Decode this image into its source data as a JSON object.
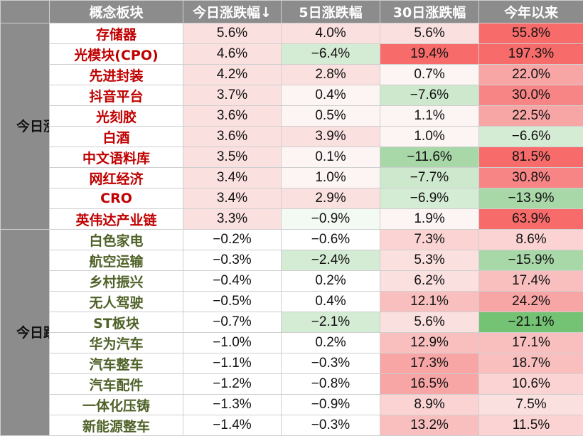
{
  "header": [
    "概念板块",
    "今日涨跌幅↓",
    "5日涨跌幅",
    "30日涨跌幅",
    "今年以来"
  ],
  "groups": [
    {
      "label": "今日涨幅前十",
      "kind": "top",
      "rows": [
        {
          "name": "存储器",
          "values": [
            "5.6%",
            "4.0%",
            "5.6%",
            "55.8%"
          ],
          "colors": [
            "#fbe0e0",
            "#fbe0e0",
            "#fbe0e0",
            "#f86b6b"
          ]
        },
        {
          "name": "光模块(CPO)",
          "values": [
            "4.6%",
            "−6.4%",
            "19.4%",
            "197.3%"
          ],
          "colors": [
            "#fbe0e0",
            "#d4ebd4",
            "#f86b6b",
            "#f86b6b"
          ]
        },
        {
          "name": "先进封装",
          "values": [
            "4.2%",
            "2.8%",
            "0.7%",
            "22.0%"
          ],
          "colors": [
            "#fbe0e0",
            "#fbe0e0",
            "#fdf4f4",
            "#f8a5a5"
          ]
        },
        {
          "name": "抖音平台",
          "values": [
            "3.7%",
            "0.4%",
            "−7.6%",
            "30.0%"
          ],
          "colors": [
            "#fbe0e0",
            "#fdf4f4",
            "#cde8cd",
            "#f88585"
          ]
        },
        {
          "name": "光刻胶",
          "values": [
            "3.6%",
            "0.5%",
            "1.1%",
            "22.5%"
          ],
          "colors": [
            "#fbe0e0",
            "#fdf4f4",
            "#fdf4f4",
            "#f8a5a5"
          ]
        },
        {
          "name": "白酒",
          "values": [
            "3.6%",
            "3.9%",
            "1.0%",
            "−6.6%"
          ],
          "colors": [
            "#fbe0e0",
            "#fbe0e0",
            "#fdf4f4",
            "#d4ebd4"
          ]
        },
        {
          "name": "中文语料库",
          "values": [
            "3.5%",
            "0.1%",
            "−11.6%",
            "81.5%"
          ],
          "colors": [
            "#fbe0e0",
            "#fdf4f4",
            "#a8d7a8",
            "#f86b6b"
          ]
        },
        {
          "name": "网红经济",
          "values": [
            "3.4%",
            "1.0%",
            "−7.7%",
            "30.8%"
          ],
          "colors": [
            "#fbe0e0",
            "#fdf4f4",
            "#cde8cd",
            "#f88585"
          ]
        },
        {
          "name": "CRO",
          "values": [
            "3.4%",
            "2.9%",
            "−6.9%",
            "−13.9%"
          ],
          "colors": [
            "#fbe0e0",
            "#fbe0e0",
            "#d4ebd4",
            "#a8d7a8"
          ]
        },
        {
          "name": "英伟达产业链",
          "values": [
            "3.3%",
            "−0.9%",
            "1.9%",
            "63.9%"
          ],
          "colors": [
            "#fbe0e0",
            "#f3faf3",
            "#fdf4f4",
            "#f86b6b"
          ]
        }
      ]
    },
    {
      "label": "今日跌幅前十",
      "kind": "bottom",
      "rows": [
        {
          "name": "白色家电",
          "values": [
            "−0.2%",
            "−0.6%",
            "7.3%",
            "8.6%"
          ],
          "colors": [
            "#ffffff",
            "#ffffff",
            "#fbd3d3",
            "#fbd3d3"
          ]
        },
        {
          "name": "航空运输",
          "values": [
            "−0.3%",
            "−2.4%",
            "5.3%",
            "−15.9%"
          ],
          "colors": [
            "#ffffff",
            "#d4ebd4",
            "#fbe0e0",
            "#a8d7a8"
          ]
        },
        {
          "name": "乡村振兴",
          "values": [
            "−0.4%",
            "0.2%",
            "6.2%",
            "17.4%"
          ],
          "colors": [
            "#ffffff",
            "#ffffff",
            "#fbe0e0",
            "#f9bfbf"
          ]
        },
        {
          "name": "无人驾驶",
          "values": [
            "−0.5%",
            "0.4%",
            "12.1%",
            "24.2%"
          ],
          "colors": [
            "#ffffff",
            "#ffffff",
            "#f9bfbf",
            "#f8a5a5"
          ]
        },
        {
          "name": "ST板块",
          "values": [
            "−0.7%",
            "−2.1%",
            "5.6%",
            "−21.1%"
          ],
          "colors": [
            "#ffffff",
            "#d4ebd4",
            "#fbe0e0",
            "#74c274"
          ]
        },
        {
          "name": "华为汽车",
          "values": [
            "−1.0%",
            "0.2%",
            "12.9%",
            "17.1%"
          ],
          "colors": [
            "#ffffff",
            "#ffffff",
            "#f9bfbf",
            "#f9bfbf"
          ]
        },
        {
          "name": "汽车整车",
          "values": [
            "−1.1%",
            "−0.3%",
            "17.3%",
            "18.7%"
          ],
          "colors": [
            "#ffffff",
            "#ffffff",
            "#f8a5a5",
            "#f9bfbf"
          ]
        },
        {
          "name": "汽车配件",
          "values": [
            "−1.2%",
            "−0.8%",
            "16.5%",
            "10.6%"
          ],
          "colors": [
            "#ffffff",
            "#ffffff",
            "#f8a5a5",
            "#fbd3d3"
          ]
        },
        {
          "name": "一体化压铸",
          "values": [
            "−1.3%",
            "−0.9%",
            "8.9%",
            "7.5%"
          ],
          "colors": [
            "#ffffff",
            "#ffffff",
            "#fbd3d3",
            "#fbe0e0"
          ]
        },
        {
          "name": "新能源整车",
          "values": [
            "−1.4%",
            "−0.3%",
            "13.2%",
            "11.5%"
          ],
          "colors": [
            "#ffffff",
            "#ffffff",
            "#f9bfbf",
            "#fbd3d3"
          ]
        }
      ]
    }
  ]
}
